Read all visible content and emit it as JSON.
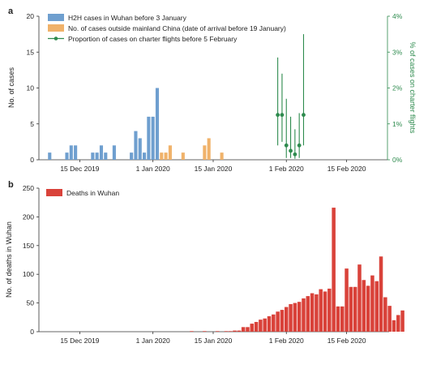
{
  "chart_data": [
    {
      "panel": "a",
      "type": "bar",
      "x_type": "date",
      "xlim": [
        "2019-12-06",
        "2020-02-25"
      ],
      "xticks": [
        {
          "date": "2019-12-15",
          "label": "15 Dec 2019"
        },
        {
          "date": "2020-01-01",
          "label": "1 Jan 2020"
        },
        {
          "date": "2020-01-15",
          "label": "15 Jan 2020"
        },
        {
          "date": "2020-02-01",
          "label": "1 Feb 2020"
        },
        {
          "date": "2020-02-15",
          "label": "15 Feb 2020"
        }
      ],
      "ylabel": "No. of cases",
      "ylim": [
        0,
        20
      ],
      "yticks": [
        0,
        5,
        10,
        15,
        20
      ],
      "y2label": "% of cases on charter flights",
      "y2lim": [
        0,
        4
      ],
      "y2ticks": [
        "0%",
        "1%",
        "2%",
        "3%",
        "4%"
      ],
      "legend": [
        {
          "label": "H2H cases in Wuhan before 3 January",
          "color": "#6f9fcf",
          "marker": "box"
        },
        {
          "label": "No. of cases outside mainland China (date of arrival before 19 January)",
          "color": "#f0b26a",
          "marker": "box"
        },
        {
          "label": "Proportion of cases on charter flights before 5 February",
          "color": "#2e8b4e",
          "marker": "line-dot"
        }
      ],
      "legend_position": "top-left",
      "series": [
        {
          "type": "bar",
          "color": "#6f9fcf",
          "points": [
            {
              "date": "2019-12-08",
              "value": 1
            },
            {
              "date": "2019-12-12",
              "value": 1
            },
            {
              "date": "2019-12-13",
              "value": 2
            },
            {
              "date": "2019-12-14",
              "value": 2
            },
            {
              "date": "2019-12-18",
              "value": 1
            },
            {
              "date": "2019-12-19",
              "value": 1
            },
            {
              "date": "2019-12-20",
              "value": 2
            },
            {
              "date": "2019-12-21",
              "value": 1
            },
            {
              "date": "2019-12-23",
              "value": 2
            },
            {
              "date": "2019-12-27",
              "value": 1
            },
            {
              "date": "2019-12-28",
              "value": 4
            },
            {
              "date": "2019-12-29",
              "value": 3
            },
            {
              "date": "2019-12-30",
              "value": 1
            },
            {
              "date": "2019-12-31",
              "value": 6
            },
            {
              "date": "2020-01-01",
              "value": 6
            },
            {
              "date": "2020-01-02",
              "value": 10
            }
          ]
        },
        {
          "type": "bar",
          "color": "#f0b26a",
          "points": [
            {
              "date": "2020-01-03",
              "value": 1
            },
            {
              "date": "2020-01-04",
              "value": 1
            },
            {
              "date": "2020-01-05",
              "value": 2
            },
            {
              "date": "2020-01-08",
              "value": 1
            },
            {
              "date": "2020-01-13",
              "value": 2
            },
            {
              "date": "2020-01-14",
              "value": 3
            },
            {
              "date": "2020-01-17",
              "value": 1
            }
          ]
        },
        {
          "type": "errorbar",
          "color": "#2e8b4e",
          "axis": "right",
          "points": [
            {
              "date": "2020-01-30",
              "value_pct": 1.25,
              "low_pct": 0.4,
              "high_pct": 2.85
            },
            {
              "date": "2020-01-31",
              "value_pct": 1.25,
              "low_pct": 0.5,
              "high_pct": 2.4
            },
            {
              "date": "2020-02-01",
              "value_pct": 0.4,
              "low_pct": 0.05,
              "high_pct": 1.7
            },
            {
              "date": "2020-02-02",
              "value_pct": 0.25,
              "low_pct": 0.05,
              "high_pct": 1.2
            },
            {
              "date": "2020-02-03",
              "value_pct": 0.15,
              "low_pct": 0.03,
              "high_pct": 0.85
            },
            {
              "date": "2020-02-04",
              "value_pct": 0.4,
              "low_pct": 0.05,
              "high_pct": 1.3
            },
            {
              "date": "2020-02-05",
              "value_pct": 1.25,
              "low_pct": 0.4,
              "high_pct": 3.5
            }
          ]
        }
      ]
    },
    {
      "panel": "b",
      "type": "bar",
      "x_type": "date",
      "xlim": [
        "2019-12-06",
        "2020-02-25"
      ],
      "xticks": [
        {
          "date": "2019-12-15",
          "label": "15 Dec 2019"
        },
        {
          "date": "2020-01-01",
          "label": "1 Jan 2020"
        },
        {
          "date": "2020-01-15",
          "label": "15 Jan 2020"
        },
        {
          "date": "2020-02-01",
          "label": "1 Feb 2020"
        },
        {
          "date": "2020-02-15",
          "label": "15 Feb 2020"
        }
      ],
      "ylabel": "No. of deaths in Wuhan",
      "ylim": [
        0,
        250
      ],
      "yticks": [
        0,
        50,
        100,
        150,
        200,
        250
      ],
      "legend": [
        {
          "label": "Deaths in Wuhan",
          "color": "#d9423a",
          "marker": "box"
        }
      ],
      "legend_position": "top-left",
      "series": [
        {
          "name": "Deaths in Wuhan",
          "type": "bar",
          "color": "#d9423a",
          "points": [
            {
              "date": "2020-01-10",
              "value": 1
            },
            {
              "date": "2020-01-13",
              "value": 1
            },
            {
              "date": "2020-01-16",
              "value": 1
            },
            {
              "date": "2020-01-18",
              "value": 1
            },
            {
              "date": "2020-01-19",
              "value": 1
            },
            {
              "date": "2020-01-20",
              "value": 2
            },
            {
              "date": "2020-01-21",
              "value": 2
            },
            {
              "date": "2020-01-22",
              "value": 8
            },
            {
              "date": "2020-01-23",
              "value": 8
            },
            {
              "date": "2020-01-24",
              "value": 14
            },
            {
              "date": "2020-01-25",
              "value": 17
            },
            {
              "date": "2020-01-26",
              "value": 21
            },
            {
              "date": "2020-01-27",
              "value": 23
            },
            {
              "date": "2020-01-28",
              "value": 27
            },
            {
              "date": "2020-01-29",
              "value": 30
            },
            {
              "date": "2020-01-30",
              "value": 35
            },
            {
              "date": "2020-01-31",
              "value": 38
            },
            {
              "date": "2020-02-01",
              "value": 43
            },
            {
              "date": "2020-02-02",
              "value": 48
            },
            {
              "date": "2020-02-03",
              "value": 50
            },
            {
              "date": "2020-02-04",
              "value": 52
            },
            {
              "date": "2020-02-05",
              "value": 58
            },
            {
              "date": "2020-02-06",
              "value": 62
            },
            {
              "date": "2020-02-07",
              "value": 67
            },
            {
              "date": "2020-02-08",
              "value": 65
            },
            {
              "date": "2020-02-09",
              "value": 74
            },
            {
              "date": "2020-02-10",
              "value": 70
            },
            {
              "date": "2020-02-11",
              "value": 75
            },
            {
              "date": "2020-02-12",
              "value": 216
            },
            {
              "date": "2020-02-13",
              "value": 44
            },
            {
              "date": "2020-02-14",
              "value": 44
            },
            {
              "date": "2020-02-15",
              "value": 110
            },
            {
              "date": "2020-02-16",
              "value": 78
            },
            {
              "date": "2020-02-17",
              "value": 78
            },
            {
              "date": "2020-02-18",
              "value": 117
            },
            {
              "date": "2020-02-19",
              "value": 90
            },
            {
              "date": "2020-02-20",
              "value": 80
            },
            {
              "date": "2020-02-21",
              "value": 98
            },
            {
              "date": "2020-02-22",
              "value": 88
            },
            {
              "date": "2020-02-23",
              "value": 131
            },
            {
              "date": "2020-02-24",
              "value": 60
            },
            {
              "date": "2020-02-25",
              "value": 45
            },
            {
              "date": "2020-02-26",
              "value": 20
            },
            {
              "date": "2020-02-27",
              "value": 29
            },
            {
              "date": "2020-02-28",
              "value": 37
            }
          ]
        }
      ]
    }
  ]
}
